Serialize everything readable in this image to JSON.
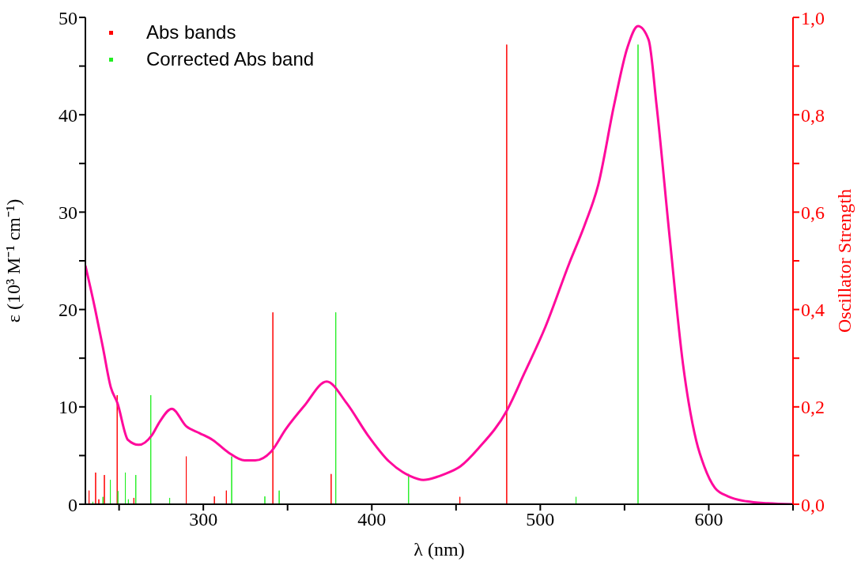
{
  "chart_data": {
    "type": "line",
    "xlabel": "λ (nm)",
    "ylabel": "ε (10³ M⁻¹ cm⁻¹)",
    "y2label": "Oscillator Strength",
    "xlim": [
      230,
      650
    ],
    "xticks": [
      {
        "value": 250,
        "label": null
      },
      300,
      {
        "value": 350,
        "label": null
      },
      400,
      {
        "value": 450,
        "label": null
      },
      500,
      {
        "value": 550,
        "label": null
      },
      600,
      {
        "value": 650,
        "label": null
      }
    ],
    "ylim": [
      0,
      50
    ],
    "yticks": [
      0,
      {
        "value": 5,
        "label": null
      },
      10,
      {
        "value": 15,
        "label": null
      },
      20,
      {
        "value": 25,
        "label": null
      },
      30,
      {
        "value": 35,
        "label": null
      },
      40,
      {
        "value": 45,
        "label": null
      },
      50
    ],
    "y2lim": [
      0,
      1
    ],
    "y2ticks": [
      {
        "value": 0,
        "label": "0,0"
      },
      {
        "value": 0.1,
        "label": null
      },
      {
        "value": 0.2,
        "label": "0,2"
      },
      {
        "value": 0.3,
        "label": null
      },
      {
        "value": 0.4,
        "label": "0,4"
      },
      {
        "value": 0.5,
        "label": null
      },
      {
        "value": 0.6,
        "label": "0,6"
      },
      {
        "value": 0.7,
        "label": null
      },
      {
        "value": 0.8,
        "label": "0,8"
      },
      {
        "value": 0.9,
        "label": null
      },
      {
        "value": 1,
        "label": "1,0"
      }
    ],
    "legend": "top left",
    "grid": false,
    "marker": "none",
    "line_style": "solid",
    "series": [
      {
        "color": "#ff0a9c",
        "x": [
          230,
          235.7,
          240.4,
          245.1,
          249,
          255.3,
          261.6,
          269.5,
          274.2,
          281.3,
          289.9,
          297.8,
          305.6,
          315,
          324.5,
          330.8,
          340.2,
          348.9,
          359.9,
          373.2,
          385,
          397.6,
          410.2,
          422.8,
          430.6,
          438.5,
          443.2,
          452.6,
          463.6,
          480.1,
          490.4,
          503,
          517.1,
          526.6,
          534.4,
          543.8,
          551.7,
          558,
          564.3,
          569,
          576.8,
          584.7,
          592.6,
          597.3,
          603.6,
          611.5,
          622.5,
          635,
          650
        ],
        "values": [
          24.5,
          20.1,
          16.1,
          12,
          10.4,
          6.6,
          6.1,
          7.1,
          8.5,
          9.8,
          8,
          7.3,
          6.6,
          5.3,
          4.5,
          4.5,
          5.4,
          7.7,
          10.1,
          12.6,
          10.4,
          7.1,
          4.4,
          2.9,
          2.5,
          2.8,
          3.1,
          3.9,
          5.8,
          9.6,
          13.4,
          18.2,
          24.7,
          28.8,
          32.8,
          41,
          46.9,
          49.1,
          47.7,
          41,
          27.4,
          14.4,
          6.5,
          3.9,
          1.7,
          0.8,
          0.3,
          0.1,
          0
        ]
      },
      {
        "type": "bar",
        "name": "Abs bands",
        "color": "#ff0000",
        "axis": "y2",
        "x": [
          232.2,
          236.1,
          238,
          241.3,
          248.9,
          258.8,
          289.9,
          306.6,
          313.7,
          341.3,
          375.9,
          452.3,
          480.1
        ],
        "values": [
          0.028,
          0.065,
          0.01,
          0.06,
          0.224,
          0.013,
          0.098,
          0.016,
          0.028,
          0.394,
          0.062,
          0.015,
          0.944
        ]
      },
      {
        "type": "bar",
        "name": "Corrected Abs band",
        "color": "#22ee22",
        "axis": "y2",
        "x": [
          234.4,
          240.4,
          244.8,
          249.3,
          253.7,
          255.5,
          259.9,
          268.8,
          280,
          316.8,
          336.5,
          345,
          378.6,
          421.8,
          521.2,
          558
        ],
        "values": [
          0.005,
          0.015,
          0.05,
          0.027,
          0.065,
          0.01,
          0.06,
          0.224,
          0.013,
          0.098,
          0.016,
          0.028,
          0.394,
          0.062,
          0.015,
          0.944
        ]
      }
    ]
  }
}
